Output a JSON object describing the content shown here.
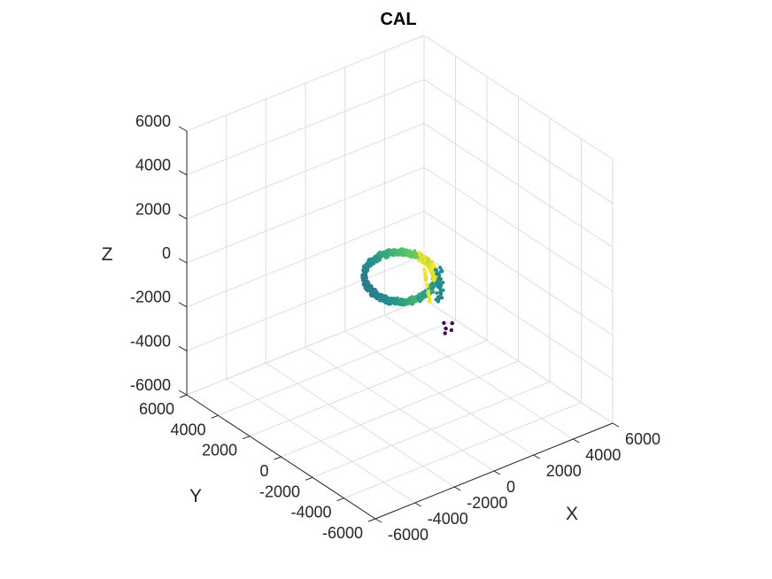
{
  "chart_data": {
    "type": "scatter3d",
    "title": "CAL",
    "xlabel": "X",
    "ylabel": "Y",
    "zlabel": "Z",
    "xlim": [
      -6000,
      6000
    ],
    "ylim": [
      -6000,
      6000
    ],
    "zlim": [
      -6000,
      6000
    ],
    "xticks": [
      -6000,
      -4000,
      -2000,
      0,
      2000,
      4000,
      6000
    ],
    "yticks": [
      -6000,
      -4000,
      -2000,
      0,
      2000,
      4000,
      6000
    ],
    "zticks": [
      -6000,
      -4000,
      -2000,
      0,
      2000,
      4000,
      6000
    ],
    "xtick_labels": [
      "-6000",
      "-4000",
      "-2000",
      "0",
      "2000",
      "4000",
      "6000"
    ],
    "ytick_labels": [
      "-6000",
      "-4000",
      "-2000",
      "0",
      "2000",
      "4000",
      "6000"
    ],
    "ztick_labels": [
      "-6000",
      "-4000",
      "-2000",
      "0",
      "2000",
      "4000",
      "6000"
    ],
    "grid": true,
    "colormap": [
      "#440154",
      "#3b528b",
      "#21918c",
      "#5ec962",
      "#fde725"
    ],
    "ring": {
      "center": [
        0,
        0,
        0
      ],
      "radius": 1400,
      "z_amplitude": 300
    },
    "outliers": [
      [
        1500,
        -1400,
        -2300
      ],
      [
        1300,
        -1300,
        -2200
      ],
      [
        1700,
        -1200,
        -2150
      ],
      [
        1100,
        -1500,
        -2250
      ],
      [
        1400,
        -1050,
        -2100
      ]
    ]
  }
}
